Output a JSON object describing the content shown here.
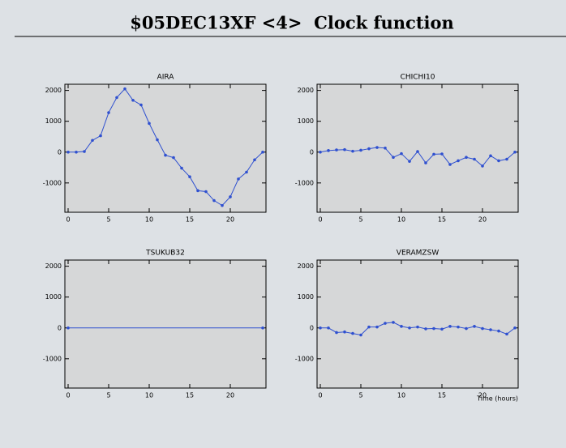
{
  "title": "$05DEC13XF <4>  Clock function",
  "chart_data": [
    {
      "type": "line",
      "title": "AIRA",
      "x": [
        0,
        1,
        2,
        3,
        4,
        5,
        6,
        7,
        8,
        9,
        10,
        11,
        12,
        13,
        14,
        15,
        16,
        17,
        18,
        19,
        20,
        21,
        22,
        23,
        24
      ],
      "series": [
        {
          "name": "AIRA",
          "color": "#2f50d0",
          "values": [
            0,
            0,
            20,
            380,
            530,
            1280,
            1770,
            2050,
            1680,
            1530,
            930,
            400,
            -100,
            -180,
            -520,
            -800,
            -1250,
            -1280,
            -1570,
            -1730,
            -1450,
            -870,
            -650,
            -250,
            0
          ]
        }
      ],
      "xlim": [
        -0.4,
        24.4
      ],
      "xticks": [
        0,
        5,
        10,
        15,
        20
      ],
      "ylim": [
        -1950,
        2200
      ],
      "yticks": [
        -1000,
        0,
        1000,
        2000
      ]
    },
    {
      "type": "line",
      "title": "CHICHI10",
      "x": [
        0,
        1,
        2,
        3,
        4,
        5,
        6,
        7,
        8,
        9,
        10,
        11,
        12,
        13,
        14,
        15,
        16,
        17,
        18,
        19,
        20,
        21,
        22,
        23,
        24
      ],
      "series": [
        {
          "name": "CHICHI10",
          "color": "#2f50d0",
          "values": [
            0,
            50,
            70,
            80,
            30,
            60,
            110,
            150,
            130,
            -170,
            -50,
            -300,
            20,
            -350,
            -70,
            -60,
            -400,
            -280,
            -170,
            -230,
            -450,
            -120,
            -280,
            -230,
            0
          ]
        }
      ],
      "xlim": [
        -0.4,
        24.4
      ],
      "xticks": [
        0,
        5,
        10,
        15,
        20
      ],
      "ylim": [
        -1950,
        2200
      ],
      "yticks": [
        -1000,
        0,
        1000,
        2000
      ]
    },
    {
      "type": "line",
      "title": "TSUKUB32",
      "x": [
        0,
        24
      ],
      "series": [
        {
          "name": "TSUKUB32",
          "color": "#2f50d0",
          "values": [
            0,
            0
          ]
        }
      ],
      "xlim": [
        -0.4,
        24.4
      ],
      "xticks": [
        0,
        5,
        10,
        15,
        20
      ],
      "ylim": [
        -1950,
        2200
      ],
      "yticks": [
        -1000,
        0,
        1000,
        2000
      ]
    },
    {
      "type": "line",
      "title": "VERAMZSW",
      "xlabel": "Time (hours)",
      "x": [
        0,
        1,
        2,
        3,
        4,
        5,
        6,
        7,
        8,
        9,
        10,
        11,
        12,
        13,
        14,
        15,
        16,
        17,
        18,
        19,
        20,
        21,
        22,
        23,
        24
      ],
      "series": [
        {
          "name": "VERAMZSW",
          "color": "#2f50d0",
          "values": [
            0,
            0,
            -150,
            -130,
            -180,
            -230,
            30,
            30,
            150,
            180,
            50,
            0,
            30,
            -30,
            -20,
            -40,
            50,
            30,
            -20,
            50,
            -20,
            -60,
            -100,
            -200,
            0
          ]
        }
      ],
      "xlim": [
        -0.4,
        24.4
      ],
      "xticks": [
        0,
        5,
        10,
        15,
        20
      ],
      "ylim": [
        -1950,
        2200
      ],
      "yticks": [
        -1000,
        0,
        1000,
        2000
      ]
    }
  ]
}
